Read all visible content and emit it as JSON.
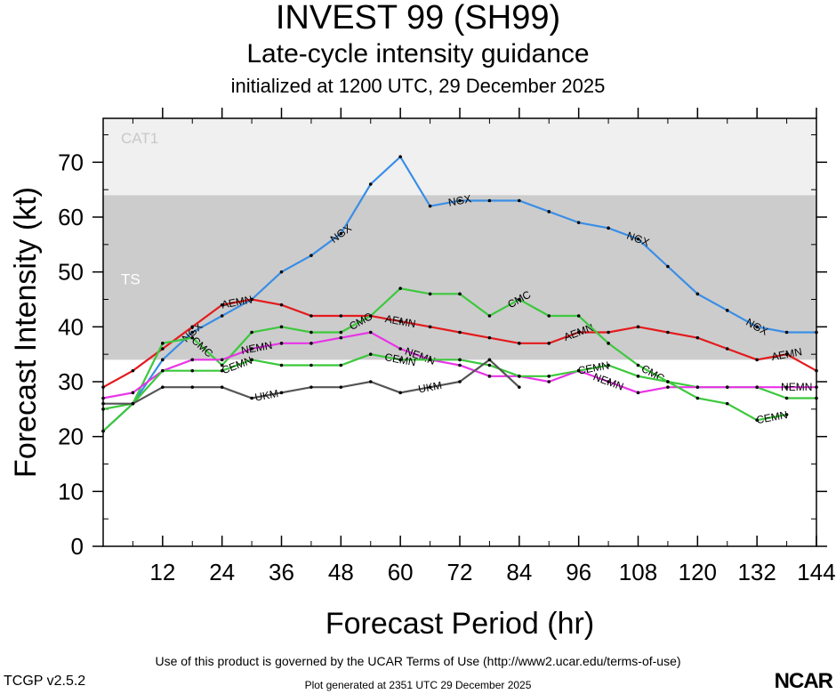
{
  "header": {
    "title": "INVEST 99 (SH99)",
    "subtitle": "Late-cycle intensity guidance",
    "init": "initialized at 1200 UTC, 29 December 2025"
  },
  "footer": {
    "terms": "Use of this product is governed by the UCAR Terms of Use (http://www2.ucar.edu/terms-of-use)",
    "version": "TCGP v2.5.2",
    "generated": "Plot generated at 2351 UTC   29 December 2025",
    "logo": "NCAR"
  },
  "chart_data": {
    "type": "line",
    "xlabel": "Forecast Period (hr)",
    "ylabel": "Forecast Intensity (kt)",
    "xlim": [
      0,
      144
    ],
    "ylim": [
      0,
      78
    ],
    "xticks": [
      12,
      24,
      36,
      48,
      60,
      72,
      84,
      96,
      108,
      120,
      132,
      144
    ],
    "yticks": [
      0,
      10,
      20,
      30,
      40,
      50,
      60,
      70
    ],
    "bands": [
      {
        "label": "CAT1",
        "from": 64,
        "to": 78,
        "color": "#f0f0f0"
      },
      {
        "label": "TS",
        "from": 34,
        "to": 64,
        "color": "#cccccc"
      }
    ],
    "series": [
      {
        "name": "NGX",
        "color": "#3a8ee6",
        "x": [
          0,
          6,
          12,
          18,
          24,
          30,
          36,
          42,
          48,
          54,
          60,
          66,
          72,
          78,
          84,
          90,
          96,
          102,
          108,
          114,
          120,
          126,
          132,
          138,
          144
        ],
        "y": [
          21,
          26,
          34,
          39,
          42,
          45,
          50,
          53,
          57,
          66,
          71,
          62,
          63,
          63,
          63,
          61,
          59,
          58,
          56,
          51,
          46,
          43,
          40,
          39,
          39
        ],
        "labels": [
          18,
          48,
          72,
          108,
          132
        ]
      },
      {
        "name": "AEMN",
        "color": "#e41a1c",
        "x": [
          0,
          6,
          12,
          18,
          24,
          30,
          36,
          42,
          48,
          54,
          60,
          66,
          72,
          78,
          84,
          90,
          96,
          102,
          108,
          114,
          120,
          126,
          132,
          138,
          144
        ],
        "y": [
          29,
          32,
          36,
          40,
          44,
          45,
          44,
          42,
          42,
          42,
          41,
          40,
          39,
          38,
          37,
          37,
          39,
          39,
          40,
          39,
          38,
          36,
          34,
          35,
          32
        ],
        "labels": [
          27,
          60,
          96,
          138
        ]
      },
      {
        "name": "CMC",
        "color": "#3cc83c",
        "x": [
          0,
          6,
          12,
          18,
          24,
          30,
          36,
          42,
          48,
          54,
          60,
          66,
          72,
          78,
          84,
          90,
          96,
          102,
          108,
          114,
          120,
          126,
          132,
          138,
          144
        ],
        "y": [
          25,
          26,
          37,
          38,
          33,
          39,
          40,
          39,
          39,
          42,
          47,
          46,
          46,
          42,
          45,
          42,
          42,
          37,
          33,
          30,
          29,
          29,
          29,
          27,
          27
        ],
        "labels": [
          20,
          52,
          84,
          111
        ]
      },
      {
        "name": "NEMN",
        "color": "#e834e8",
        "x": [
          0,
          6,
          12,
          18,
          24,
          30,
          36,
          42,
          48,
          54,
          60,
          66,
          72,
          78,
          84,
          90,
          96,
          102,
          108,
          114,
          120,
          126,
          132,
          138,
          144
        ],
        "y": [
          27,
          28,
          32,
          34,
          34,
          36,
          37,
          37,
          38,
          39,
          36,
          34,
          33,
          31,
          31,
          30,
          32,
          30,
          28,
          29,
          29,
          29,
          29,
          29,
          29
        ],
        "labels": [
          31,
          64,
          102,
          140
        ]
      },
      {
        "name": "CEMN",
        "color": "#3cc83c",
        "x": [
          0,
          6,
          12,
          18,
          24,
          30,
          36,
          42,
          48,
          54,
          60,
          66,
          72,
          78,
          84,
          90,
          96,
          102,
          108,
          114,
          120,
          126,
          132,
          138
        ],
        "y": [
          21,
          26,
          32,
          32,
          32,
          34,
          33,
          33,
          33,
          35,
          34,
          34,
          34,
          33,
          31,
          31,
          32,
          33,
          31,
          30,
          27,
          26,
          23,
          24
        ],
        "labels": [
          27,
          60,
          99,
          135
        ]
      },
      {
        "name": "UKM",
        "color": "#555555",
        "x": [
          0,
          6,
          12,
          18,
          24,
          30,
          36,
          42,
          48,
          54,
          60,
          66,
          72,
          78,
          84
        ],
        "y": [
          26,
          26,
          29,
          29,
          29,
          27,
          28,
          29,
          29,
          30,
          28,
          29,
          30,
          34,
          29
        ],
        "labels": [
          33,
          66
        ]
      }
    ]
  }
}
